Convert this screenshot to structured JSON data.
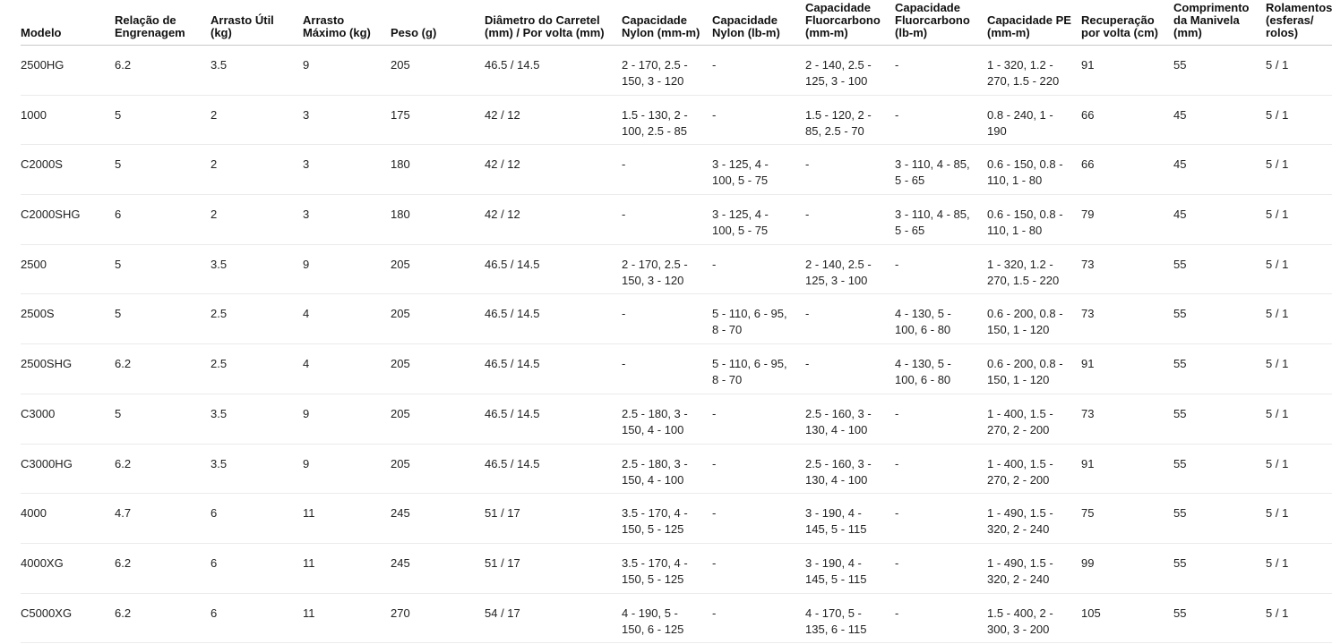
{
  "page": {
    "background_color": "#ffffff",
    "text_color": "#222222",
    "header_text_color": "#111111",
    "header_border_color": "#c9c9c9",
    "row_border_color": "#ebebeb"
  },
  "table": {
    "columns": [
      {
        "key": "modelo",
        "label": "Modelo"
      },
      {
        "key": "relacao-engrenagem",
        "label": "Relação de Engrenagem"
      },
      {
        "key": "arrasto-util",
        "label": "Arrasto Útil (kg)"
      },
      {
        "key": "arrasto-maximo",
        "label": "Arrasto Máximo (kg)"
      },
      {
        "key": "peso",
        "label": "Peso (g)"
      },
      {
        "key": "diametro-carretel",
        "label": "Diâmetro do Carretel (mm) / Por volta (mm)"
      },
      {
        "key": "capacidade-nylon-mm",
        "label": "Capacidade Nylon (mm-m)"
      },
      {
        "key": "capacidade-nylon-lb",
        "label": "Capacidade Nylon (lb-m)"
      },
      {
        "key": "capacidade-fluorcarbono-mm",
        "label": "Capacidade Fluorcarbono (mm-m)"
      },
      {
        "key": "capacidade-fluorcarbono-lb",
        "label": "Capacidade Fluorcarbono (lb-m)"
      },
      {
        "key": "capacidade-pe",
        "label": "Capacidade PE (mm-m)"
      },
      {
        "key": "recuperacao-por-volta",
        "label": "Recuperação por volta (cm)"
      },
      {
        "key": "comprimento-manivela",
        "label": "Comprimento da Manivela (mm)"
      },
      {
        "key": "rolamentos",
        "label": "Rolamentos (esferas/rolos)"
      }
    ],
    "rows": [
      [
        "2500HG",
        "6.2",
        "3.5",
        "9",
        "205",
        "46.5 / 14.5",
        "2 - 170, 2.5 - 150, 3 - 120",
        "-",
        "2 - 140, 2.5 - 125, 3 - 100",
        "-",
        "1 - 320, 1.2 - 270, 1.5 - 220",
        "91",
        "55",
        "5 / 1"
      ],
      [
        "1000",
        "5",
        "2",
        "3",
        "175",
        "42 / 12",
        "1.5 - 130, 2 - 100, 2.5 - 85",
        "-",
        "1.5 - 120, 2 - 85, 2.5 - 70",
        "-",
        "0.8 - 240, 1 - 190",
        "66",
        "45",
        "5 / 1"
      ],
      [
        "C2000S",
        "5",
        "2",
        "3",
        "180",
        "42 / 12",
        "-",
        "3 - 125, 4 - 100, 5 - 75",
        "-",
        "3 - 110, 4 - 85, 5 - 65",
        "0.6 - 150, 0.8 - 110, 1 - 80",
        "66",
        "45",
        "5 / 1"
      ],
      [
        "C2000SHG",
        "6",
        "2",
        "3",
        "180",
        "42 / 12",
        "-",
        "3 - 125, 4 - 100, 5 - 75",
        "-",
        "3 - 110, 4 - 85, 5 - 65",
        "0.6 - 150, 0.8 - 110, 1 - 80",
        "79",
        "45",
        "5 / 1"
      ],
      [
        "2500",
        "5",
        "3.5",
        "9",
        "205",
        "46.5 / 14.5",
        "2 - 170, 2.5 - 150, 3 - 120",
        "-",
        "2 - 140, 2.5 - 125, 3 - 100",
        "-",
        "1 - 320, 1.2 - 270, 1.5 - 220",
        "73",
        "55",
        "5 / 1"
      ],
      [
        "2500S",
        "5",
        "2.5",
        "4",
        "205",
        "46.5 / 14.5",
        "-",
        "5 - 110, 6 - 95, 8 - 70",
        "-",
        "4 - 130, 5 - 100, 6 - 80",
        "0.6 - 200, 0.8 - 150, 1 - 120",
        "73",
        "55",
        "5 / 1"
      ],
      [
        "2500SHG",
        "6.2",
        "2.5",
        "4",
        "205",
        "46.5 / 14.5",
        "-",
        "5 - 110, 6 - 95, 8 - 70",
        "-",
        "4 - 130, 5 - 100, 6 - 80",
        "0.6 - 200, 0.8 - 150, 1 - 120",
        "91",
        "55",
        "5 / 1"
      ],
      [
        "C3000",
        "5",
        "3.5",
        "9",
        "205",
        "46.5 / 14.5",
        "2.5 - 180, 3 - 150, 4 - 100",
        "-",
        "2.5 - 160, 3 - 130, 4 - 100",
        "-",
        "1 - 400, 1.5 - 270, 2 - 200",
        "73",
        "55",
        "5 / 1"
      ],
      [
        "C3000HG",
        "6.2",
        "3.5",
        "9",
        "205",
        "46.5 / 14.5",
        "2.5 - 180, 3 - 150, 4 - 100",
        "-",
        "2.5 - 160, 3 - 130, 4 - 100",
        "-",
        "1 - 400, 1.5 - 270, 2 - 200",
        "91",
        "55",
        "5 / 1"
      ],
      [
        "4000",
        "4.7",
        "6",
        "11",
        "245",
        "51 / 17",
        "3.5 - 170, 4 - 150, 5 - 125",
        "-",
        "3 - 190, 4 - 145, 5 - 115",
        "-",
        "1 - 490, 1.5 - 320, 2 - 240",
        "75",
        "55",
        "5 / 1"
      ],
      [
        "4000XG",
        "6.2",
        "6",
        "11",
        "245",
        "51 / 17",
        "3.5 - 170, 4 - 150, 5 - 125",
        "-",
        "3 - 190, 4 - 145, 5 - 115",
        "-",
        "1 - 490, 1.5 - 320, 2 - 240",
        "99",
        "55",
        "5 / 1"
      ],
      [
        "C5000XG",
        "6.2",
        "6",
        "11",
        "270",
        "54 / 17",
        "4 - 190, 5 - 150, 6 - 125",
        "-",
        "4 - 170, 5 - 135, 6 - 115",
        "-",
        "1.5 - 400, 2 - 300, 3 - 200",
        "105",
        "55",
        "5 / 1"
      ]
    ]
  }
}
